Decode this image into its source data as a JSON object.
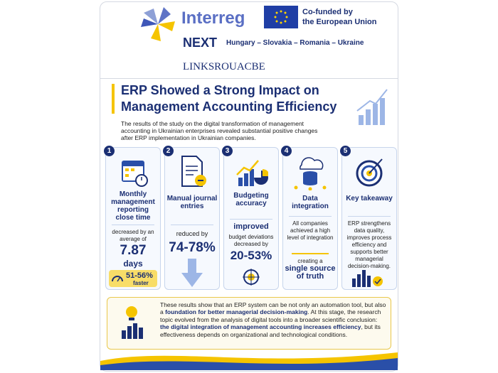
{
  "header": {
    "logo": "Interreg",
    "eu_line1": "Co-funded by",
    "eu_line2": "the European Union",
    "program": "NEXT",
    "countries": "Hungary – Slovakia – Romania – Ukraine",
    "project": "LINKSROUACBE"
  },
  "title": {
    "line1": "ERP Showed a Strong Impact on",
    "line2": "Management Accounting Efficiency"
  },
  "intro": {
    "line1": "The results of the study on the digital transformation of management",
    "line2": "accounting in Ukrainian enterprises revealed substantial positive changes",
    "line3": "after ERP implementation in Ukrainian companies."
  },
  "cards": [
    {
      "number": "1",
      "title": "Monthly management reporting close time",
      "text": "decreased by an average of",
      "value": "7.87",
      "unit": "days",
      "badge_value": "51-56%",
      "badge_text": "faster"
    },
    {
      "number": "2",
      "title": "Manual journal entries",
      "text": "reduced by",
      "value": "74-78%"
    },
    {
      "number": "3",
      "title": "Budgeting accuracy",
      "highlight": "improved",
      "text": "budget deviations decreased by",
      "value": "20-53%"
    },
    {
      "number": "4",
      "title": "Data integration",
      "text": "All companies achieved a high level of integration",
      "pre": "creating a",
      "highlight": "single source of truth"
    },
    {
      "number": "5",
      "title": "Key takeaway",
      "text": "ERP strengthens data quality, improves process efficiency and supports better managerial decision-making."
    }
  ],
  "conclusion": {
    "part1": "These results show that an ERP system can be not only an automation tool, but also a ",
    "bold1": "foundation for better managerial decision-making",
    "part2": ". At this stage, the research topic evolved from the analysis of digital tools into a broader scientific conclusion: ",
    "bold2": "the digital integration of management accounting increases efficiency",
    "part3": ", but its effectiveness depends on organizational and technological conditions."
  }
}
